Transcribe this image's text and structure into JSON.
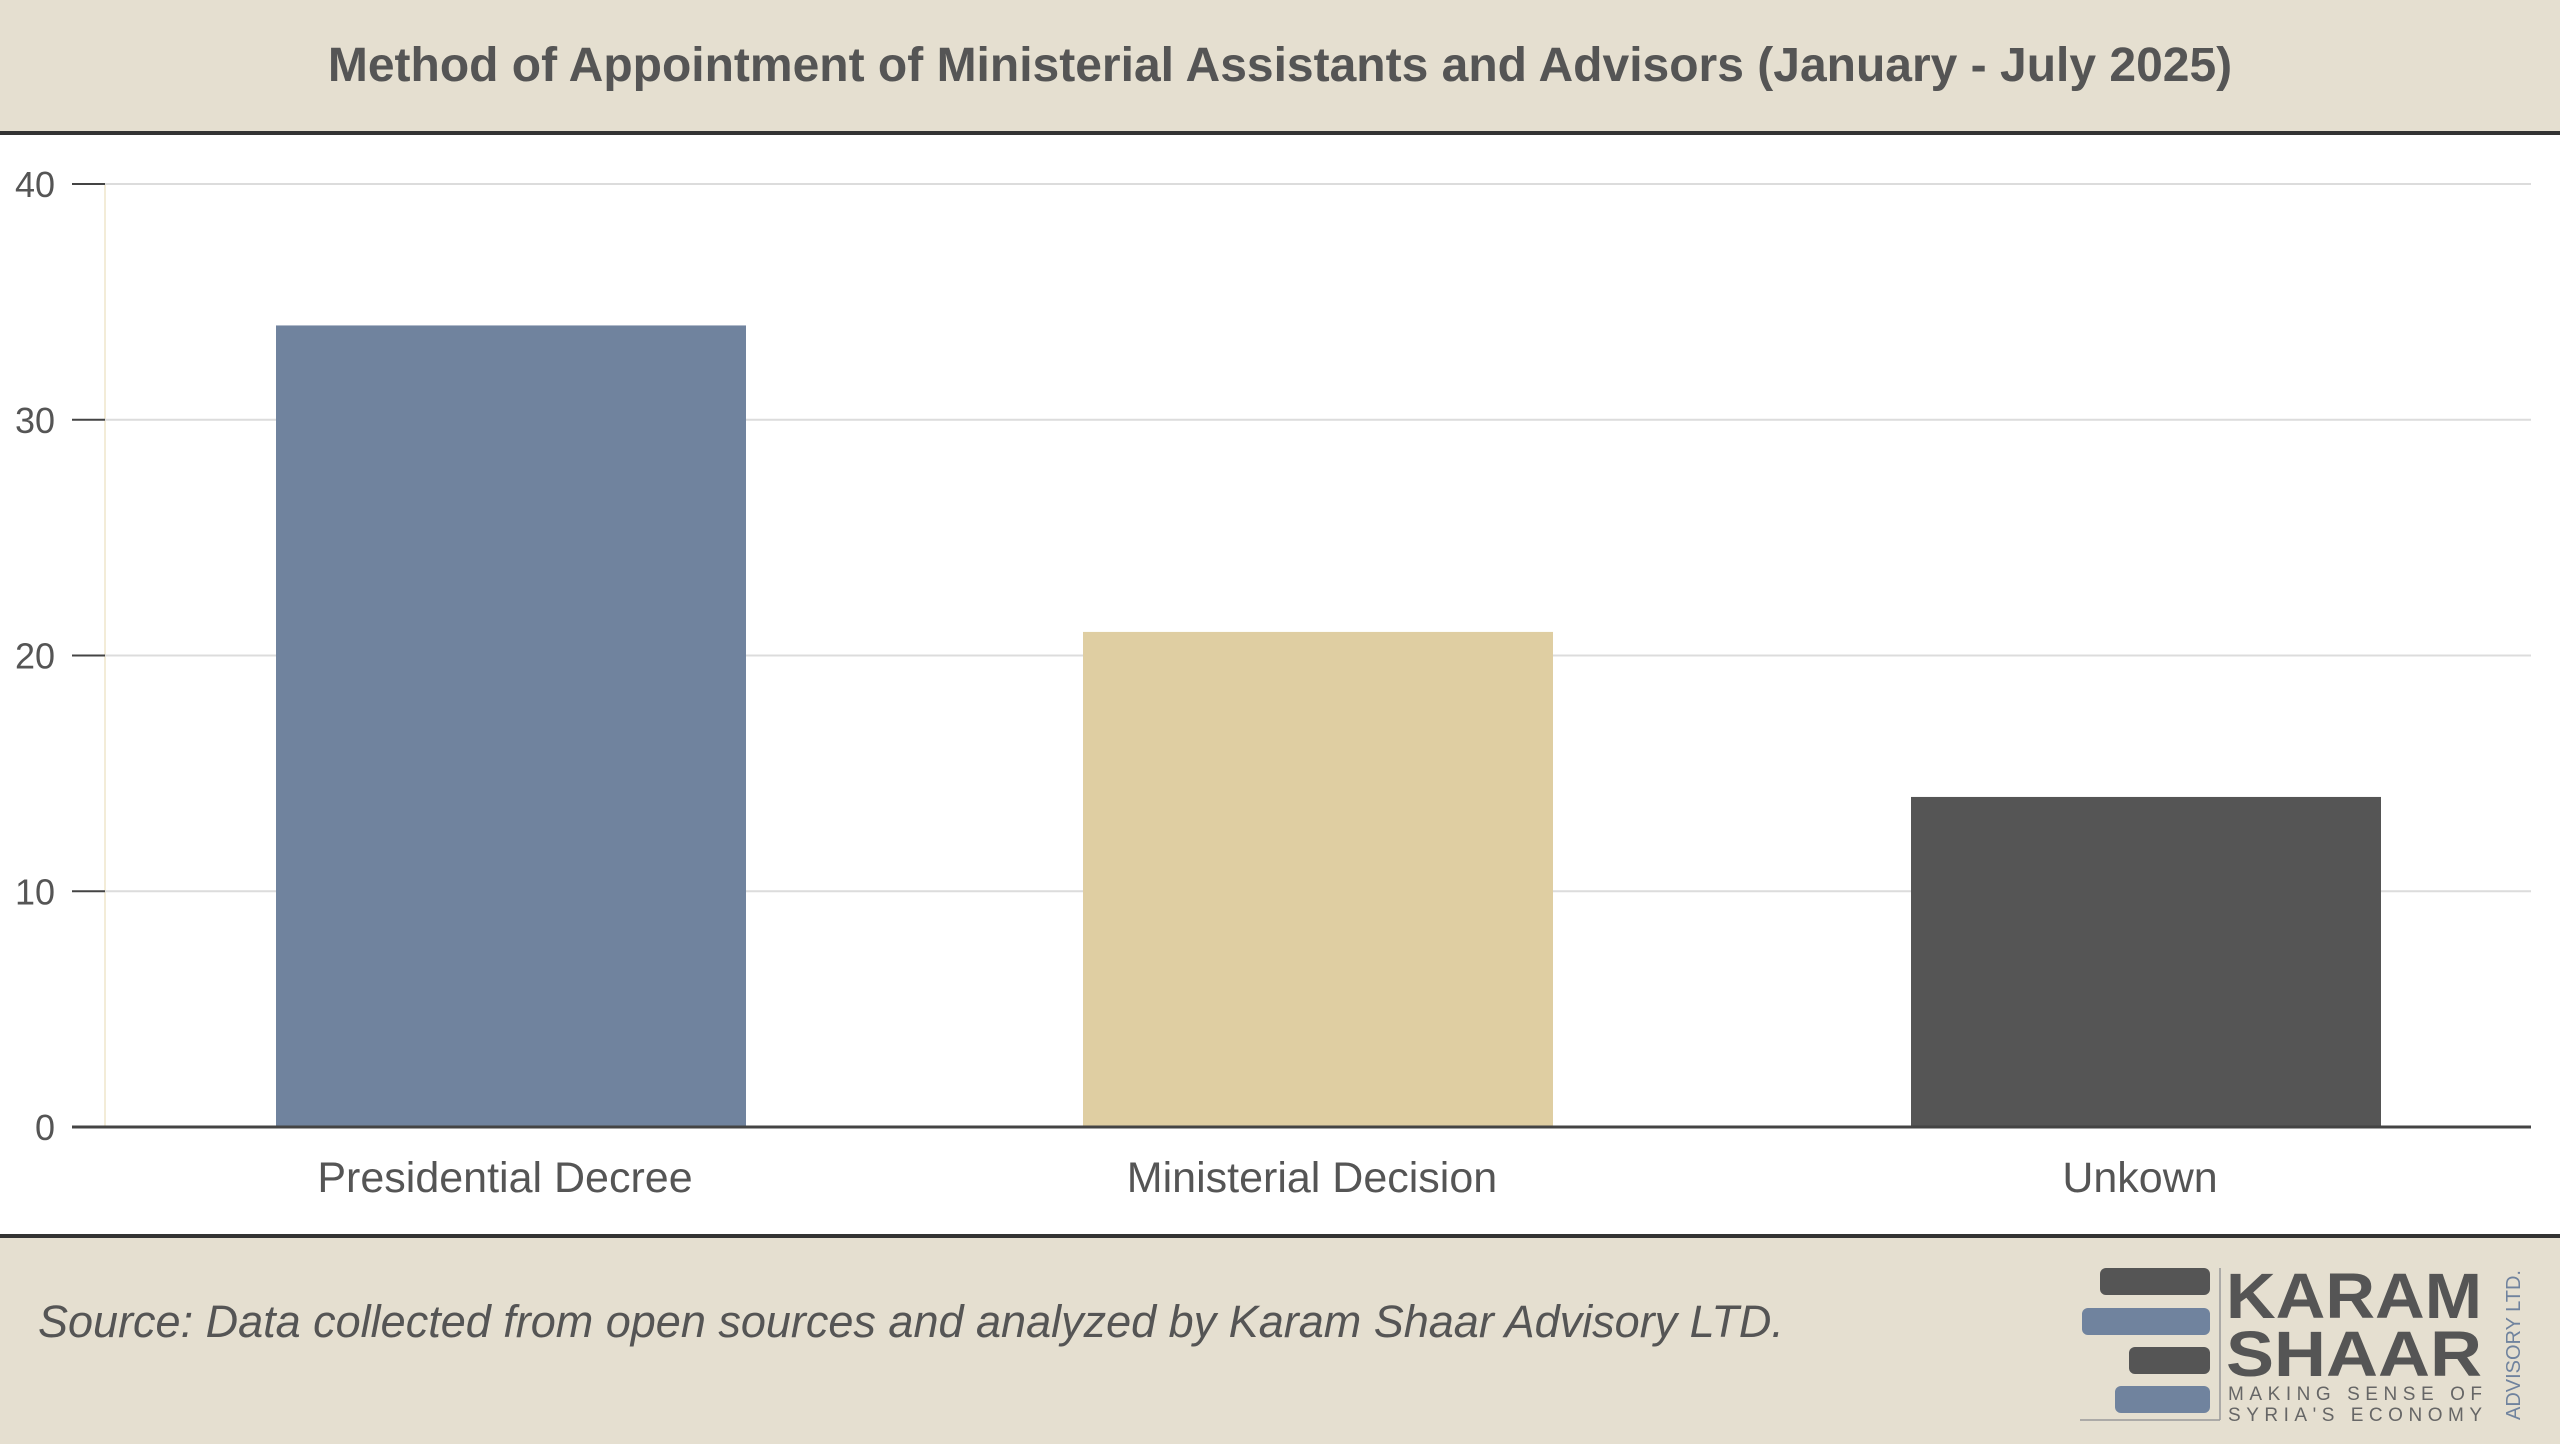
{
  "header": {
    "title": "Method of Appointment of Ministerial Assistants and Advisors (January - July 2025)"
  },
  "chart_data": {
    "type": "bar",
    "title": "Method of Appointment of Ministerial Assistants and Advisors (January - July 2025)",
    "categories": [
      "Presidential Decree",
      "Ministerial Decision",
      "Unkown"
    ],
    "values": [
      34,
      21,
      14
    ],
    "colors": [
      "#70839e",
      "#dfcea2",
      "#555555"
    ],
    "xlabel": "",
    "ylabel": "",
    "ylim": [
      0,
      40
    ],
    "yticks": [
      "0",
      "10",
      "20",
      "30",
      "40"
    ],
    "grid": true,
    "legend": "none"
  },
  "footer": {
    "source": "Source: Data collected from open sources and analyzed by Karam Shaar Advisory LTD.",
    "logo": {
      "line1": "KARAM",
      "line2": "SHAAR",
      "tagline1": "MAKING SENSE OF",
      "tagline2": "SYRIA'S ECONOMY",
      "side": "ADVISORY LTD."
    }
  }
}
